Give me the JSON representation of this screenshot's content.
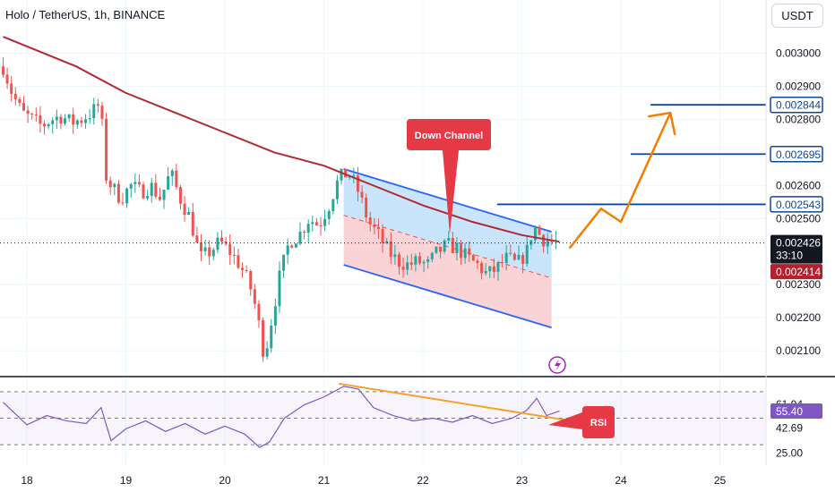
{
  "header": {
    "title": "Holo / TetherUS, 1h, BINANCE",
    "currency_button": "USDT"
  },
  "colors": {
    "grid": "#ebf8fb",
    "bull": "#26a69a",
    "bear": "#ef5350",
    "ma": "#b22833",
    "channel_line": "#2962ff",
    "channel_upper_fill": "#bbdefb",
    "channel_lower_fill": "#f8c4c9",
    "forecast_arrow": "#f57c00",
    "target_line": "#0d47a1",
    "rsi_line": "#7e57c2",
    "rsi_divergence": "#f7a12c",
    "callout": "#e53946",
    "last_price_bg": "#131722",
    "bid_bg": "#b2212c",
    "rsi_value_bg": "#7e57c2"
  },
  "icons": [
    "lightning-icon"
  ],
  "chart_data": {
    "type": "candlestick",
    "symbol": "Holo / TetherUS",
    "interval": "1h",
    "exchange": "BINANCE",
    "price_axis": {
      "ticks": [
        "0.003000",
        "0.002900",
        "0.002800",
        "0.002600",
        "0.002500",
        "0.002300",
        "0.002200",
        "0.002100"
      ],
      "range": [
        0.00203,
        0.00308
      ]
    },
    "time_axis": {
      "ticks": [
        "18",
        "19",
        "20",
        "21",
        "22",
        "23",
        "24",
        "25"
      ]
    },
    "price_labels": {
      "last_price": "0.002426",
      "countdown": "33:10",
      "bid": "0.002414",
      "targets": [
        "0.002543",
        "0.002695",
        "0.002844"
      ]
    },
    "ohlc_path": [
      [
        17.76,
        0.00296
      ],
      [
        17.85,
        0.00288
      ],
      [
        17.95,
        0.00282
      ],
      [
        18.05,
        0.0028
      ],
      [
        18.15,
        0.00278
      ],
      [
        18.25,
        0.0028
      ],
      [
        18.35,
        0.00281
      ],
      [
        18.45,
        0.00279
      ],
      [
        18.55,
        0.0028
      ],
      [
        18.65,
        0.00282
      ],
      [
        18.75,
        0.00285
      ],
      [
        18.78,
        0.00264
      ],
      [
        18.85,
        0.0026
      ],
      [
        18.95,
        0.00256
      ],
      [
        19.05,
        0.0026
      ],
      [
        19.15,
        0.00258
      ],
      [
        19.25,
        0.0026
      ],
      [
        19.35,
        0.00256
      ],
      [
        19.45,
        0.00264
      ],
      [
        19.55,
        0.00256
      ],
      [
        19.65,
        0.0025
      ],
      [
        19.75,
        0.00238
      ],
      [
        19.85,
        0.0024
      ],
      [
        19.95,
        0.00243
      ],
      [
        20.05,
        0.0024
      ],
      [
        20.15,
        0.00236
      ],
      [
        20.25,
        0.0023
      ],
      [
        20.32,
        0.00222
      ],
      [
        20.4,
        0.00208
      ],
      [
        20.45,
        0.00216
      ],
      [
        20.55,
        0.00232
      ],
      [
        20.65,
        0.00243
      ],
      [
        20.75,
        0.00245
      ],
      [
        20.85,
        0.0025
      ],
      [
        20.95,
        0.00248
      ],
      [
        21.05,
        0.00254
      ],
      [
        21.15,
        0.00262
      ],
      [
        21.25,
        0.00264
      ],
      [
        21.35,
        0.00258
      ],
      [
        21.45,
        0.00249
      ],
      [
        21.55,
        0.00245
      ],
      [
        21.65,
        0.0024
      ],
      [
        21.75,
        0.00237
      ],
      [
        21.85,
        0.00236
      ],
      [
        21.95,
        0.00237
      ],
      [
        22.05,
        0.00236
      ],
      [
        22.15,
        0.0024
      ],
      [
        22.25,
        0.00242
      ],
      [
        22.35,
        0.00241
      ],
      [
        22.45,
        0.00238
      ],
      [
        22.55,
        0.00236
      ],
      [
        22.65,
        0.00233
      ],
      [
        22.75,
        0.00235
      ],
      [
        22.85,
        0.00238
      ],
      [
        22.95,
        0.00236
      ],
      [
        23.05,
        0.0024
      ],
      [
        23.12,
        0.00248
      ],
      [
        23.2,
        0.00244
      ],
      [
        23.3,
        0.00243
      ],
      [
        23.38,
        0.002426
      ]
    ],
    "moving_average": [
      [
        17.76,
        0.00305
      ],
      [
        18.5,
        0.00296
      ],
      [
        19.0,
        0.00288
      ],
      [
        19.5,
        0.00282
      ],
      [
        20.0,
        0.00276
      ],
      [
        20.5,
        0.0027
      ],
      [
        21.0,
        0.00266
      ],
      [
        21.5,
        0.0026
      ],
      [
        22.0,
        0.00254
      ],
      [
        22.5,
        0.00249
      ],
      [
        23.0,
        0.00245
      ],
      [
        23.38,
        0.00243
      ]
    ],
    "channel": {
      "label": "Down Channel",
      "upper": [
        [
          21.2,
          0.00265
        ],
        [
          23.3,
          0.00246
        ]
      ],
      "middle": [
        [
          21.2,
          0.00251
        ],
        [
          23.3,
          0.00232
        ]
      ],
      "lower": [
        [
          21.2,
          0.00236
        ],
        [
          23.3,
          0.00217
        ]
      ]
    },
    "target_levels": [
      {
        "value": 0.002543,
        "from_x": 22.75
      },
      {
        "value": 0.002695,
        "from_x": 24.1
      },
      {
        "value": 0.002844,
        "from_x": 24.3
      }
    ],
    "forecast_path": [
      [
        23.48,
        0.00241
      ],
      [
        23.8,
        0.00253
      ],
      [
        24.0,
        0.00249
      ],
      [
        24.5,
        0.00282
      ]
    ],
    "rsi": {
      "label": "RSI",
      "value_label": "55.40",
      "ticks": [
        "61.94",
        "42.69",
        "25.00"
      ],
      "levels": [
        70,
        50,
        30
      ],
      "range": [
        20,
        80
      ],
      "values": [
        [
          17.76,
          62
        ],
        [
          18.0,
          45
        ],
        [
          18.2,
          52
        ],
        [
          18.4,
          48
        ],
        [
          18.6,
          46
        ],
        [
          18.75,
          58
        ],
        [
          18.85,
          33
        ],
        [
          19.0,
          42
        ],
        [
          19.2,
          48
        ],
        [
          19.4,
          40
        ],
        [
          19.6,
          46
        ],
        [
          19.8,
          38
        ],
        [
          20.0,
          44
        ],
        [
          20.2,
          38
        ],
        [
          20.35,
          28
        ],
        [
          20.45,
          32
        ],
        [
          20.6,
          50
        ],
        [
          20.8,
          60
        ],
        [
          21.0,
          66
        ],
        [
          21.2,
          74
        ],
        [
          21.35,
          72
        ],
        [
          21.5,
          58
        ],
        [
          21.7,
          52
        ],
        [
          21.9,
          48
        ],
        [
          22.1,
          50
        ],
        [
          22.3,
          47
        ],
        [
          22.5,
          52
        ],
        [
          22.7,
          46
        ],
        [
          22.9,
          50
        ],
        [
          23.05,
          56
        ],
        [
          23.15,
          65
        ],
        [
          23.25,
          52
        ],
        [
          23.38,
          55.4
        ]
      ],
      "divergence": [
        [
          21.15,
          76
        ],
        [
          23.35,
          50
        ]
      ]
    }
  }
}
